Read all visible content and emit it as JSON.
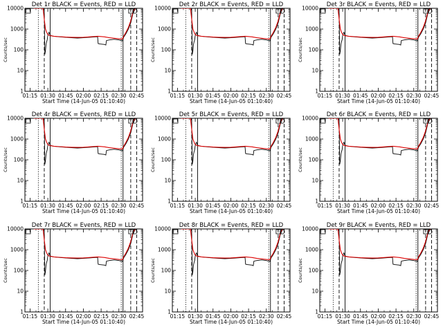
{
  "colors": {
    "events": "#000000",
    "lld": "#dd0000",
    "background": "#ffffff"
  },
  "chart_data": {
    "type": "line",
    "y_scale": "log",
    "ylim": [
      1,
      10000
    ],
    "y_ticks": [
      1,
      10,
      100,
      1000,
      10000
    ],
    "x_tick_labels": [
      "01:15",
      "01:30",
      "01:45",
      "02:00",
      "02:15",
      "02:30",
      "02:45"
    ],
    "x_tick_minutes": [
      75,
      90,
      105,
      120,
      135,
      150,
      165
    ],
    "xlim_minutes": [
      70.67,
      170
    ],
    "xlabel": "Start Time (14-Jun-05 01:10:40)",
    "ylabel": "Counts/sec",
    "panels": [
      {
        "title": "Det 1r BLACK = Events, RED = LLD"
      },
      {
        "title": "Det 2r BLACK = Events, RED = LLD"
      },
      {
        "title": "Det 3r BLACK = Events, RED = LLD"
      },
      {
        "title": "Det 4r BLACK = Events, RED = LLD"
      },
      {
        "title": "Det 5r BLACK = Events, RED = LLD"
      },
      {
        "title": "Det 6r BLACK = Events, RED = LLD"
      },
      {
        "title": "Det 7r BLACK = Events, RED = LLD"
      },
      {
        "title": "Det 8r BLACK = Events, RED = LLD"
      },
      {
        "title": "Det 9r BLACK = Events, RED = LLD"
      }
    ],
    "series": [
      {
        "name": "Events",
        "color": "#000000",
        "x": [
          78,
          80,
          82,
          84,
          85,
          86,
          87,
          87.5,
          88,
          88.5,
          89,
          89.5,
          90,
          91,
          92,
          95,
          100,
          105,
          110,
          115,
          120,
          125,
          130,
          132,
          132.5,
          134,
          138,
          139,
          139.5,
          142,
          146,
          150,
          153,
          154,
          156,
          158,
          160,
          162,
          164
        ],
        "y": [
          10000,
          10000,
          10000,
          10000,
          10000,
          10000,
          8000,
          60,
          90,
          180,
          250,
          300,
          500,
          700,
          500,
          450,
          420,
          400,
          380,
          370,
          380,
          400,
          420,
          430,
          200,
          190,
          180,
          170,
          280,
          300,
          320,
          300,
          270,
          400,
          600,
          1000,
          2000,
          6000,
          10000
        ]
      },
      {
        "name": "LLD",
        "color": "#dd0000",
        "x": [
          78,
          80,
          82,
          84,
          86,
          87,
          88,
          89,
          90,
          91,
          92,
          95,
          100,
          105,
          110,
          115,
          120,
          125,
          130,
          132,
          134,
          138,
          142,
          146,
          150,
          153,
          154,
          156,
          158,
          160,
          162,
          164
        ],
        "y": [
          10000,
          10000,
          10000,
          10000,
          10000,
          3000,
          1000,
          700,
          550,
          500,
          480,
          450,
          430,
          410,
          400,
          395,
          400,
          420,
          440,
          450,
          440,
          420,
          380,
          360,
          340,
          330,
          450,
          700,
          1200,
          2500,
          7000,
          10000
        ]
      }
    ],
    "vertical_lines": [
      {
        "style": "dotted",
        "x": 82
      },
      {
        "style": "dashed",
        "x": 87
      },
      {
        "style": "solid",
        "x": 92
      },
      {
        "style": "dotted",
        "x": 152
      },
      {
        "style": "solid",
        "x": 153.5
      },
      {
        "style": "dashed",
        "x": 160
      },
      {
        "style": "dashed",
        "x": 165
      }
    ]
  }
}
